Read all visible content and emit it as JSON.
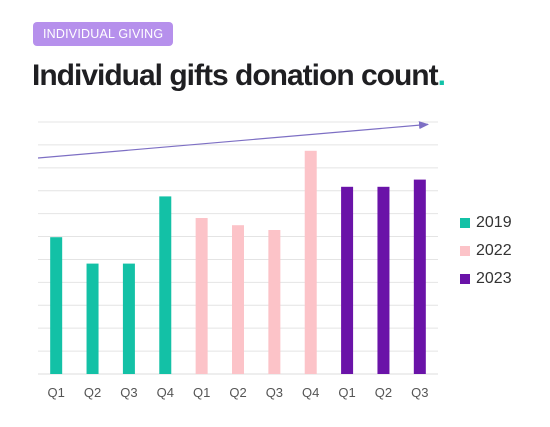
{
  "header": {
    "badge": "INDIVIDUAL GIVING",
    "title": "Individual gifts donation count",
    "title_punct": "."
  },
  "colors": {
    "2019": "#13c1a6",
    "2022": "#fcc3c8",
    "2023": "#6a13a8",
    "badge": "#b690ec",
    "trend": "#7d6fc4",
    "grid": "#e4e4e4"
  },
  "chart_data": {
    "type": "bar",
    "categories": [
      "Q1",
      "Q2",
      "Q3",
      "Q4",
      "Q1",
      "Q2",
      "Q3",
      "Q4",
      "Q1",
      "Q2",
      "Q3"
    ],
    "groups": [
      "2019",
      "2019",
      "2019",
      "2019",
      "2022",
      "2022",
      "2022",
      "2022",
      "2023",
      "2023",
      "2023"
    ],
    "values": [
      57,
      46,
      46,
      74,
      65,
      62,
      60,
      93,
      78,
      78,
      81
    ],
    "series": [
      {
        "name": "2019",
        "values": [
          57,
          46,
          46,
          74,
          null,
          null,
          null,
          null,
          null,
          null,
          null
        ]
      },
      {
        "name": "2022",
        "values": [
          null,
          null,
          null,
          null,
          65,
          62,
          60,
          93,
          null,
          null,
          null
        ]
      },
      {
        "name": "2023",
        "values": [
          null,
          null,
          null,
          null,
          null,
          null,
          null,
          null,
          78,
          78,
          81
        ]
      }
    ],
    "ylim": [
      0,
      105
    ],
    "y_axis_labels_shown": false,
    "grid": true,
    "legend": "right",
    "trend_arrow": {
      "start": 90,
      "end": 104
    }
  }
}
